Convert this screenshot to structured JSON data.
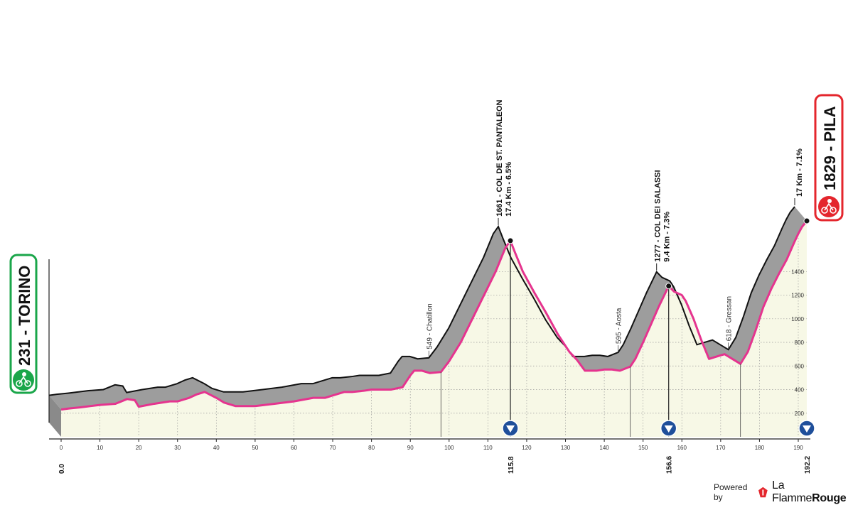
{
  "stage": {
    "start": {
      "elevation": "231",
      "name": "TORINO",
      "text": "231 - TORINO",
      "color": "#1aa64a"
    },
    "finish": {
      "elevation": "1829",
      "name": "PILA",
      "text": "1829 - PILA",
      "color": "#e4262d",
      "climb": "17 Km - 7.1%"
    },
    "climbs": [
      {
        "name": "1661 - COL DE ST. PANTALEON",
        "stats": "17.4 Km - 6.5%",
        "km": 115.8
      },
      {
        "name": "1277 - COL DEI SALASSI",
        "stats": "9.4 Km - 7.3%",
        "km": 156.6
      },
      {
        "name": "",
        "stats": "17 Km - 7.1%",
        "km": 192.2
      }
    ],
    "places": [
      {
        "label": "549 - Chatillon",
        "km": 97.9,
        "km_label": "97.9"
      },
      {
        "label": "595 - Aosta",
        "km": 146.7,
        "km_label": "146.7"
      },
      {
        "label": "618 - Gressan",
        "km": 175.1,
        "km_label": "175.1"
      }
    ],
    "km_markers": [
      "0.0",
      "115.8",
      "156.6",
      "192.2"
    ]
  },
  "colors": {
    "route": "#e5348f",
    "fill": "#f7f8e6",
    "shadow": "#9d9d9d",
    "outline": "#111111",
    "gpm": "#1f4f9a"
  },
  "credit": {
    "powered": "Powered by",
    "brand_light": "La Flamme",
    "brand_bold": "Rouge"
  },
  "chart_data": {
    "type": "area",
    "title": "",
    "xlabel": "",
    "ylabel": "",
    "xlim": [
      0,
      192.2
    ],
    "ylim": [
      0,
      1829
    ],
    "x_ticks": [
      0,
      10,
      20,
      30,
      40,
      50,
      60,
      70,
      80,
      90,
      100,
      110,
      120,
      130,
      140,
      150,
      160,
      170,
      180,
      190
    ],
    "y_ticks": [
      200,
      400,
      600,
      800,
      1000,
      1200,
      1400
    ],
    "grid": true,
    "series": [
      {
        "x": [
          0,
          2,
          5,
          10,
          14,
          17,
          19,
          20,
          24,
          28,
          30,
          33,
          35,
          37,
          40,
          42,
          45,
          50,
          55,
          60,
          65,
          68,
          70,
          73,
          75,
          78,
          80,
          85,
          88,
          90,
          91,
          93,
          95,
          97.9,
          100,
          103,
          106,
          109,
          112,
          113.5,
          114.5,
          115.8,
          117,
          119,
          122,
          125,
          128,
          131,
          133,
          135,
          138,
          140,
          142,
          144,
          146.7,
          148,
          150,
          152,
          154,
          156.6,
          158,
          160,
          161,
          163,
          165,
          167,
          169,
          171,
          173,
          175.1,
          177,
          179,
          181,
          183,
          185,
          187,
          189,
          190,
          191,
          192.2
        ],
        "y": [
          231,
          240,
          250,
          270,
          280,
          320,
          310,
          255,
          280,
          300,
          300,
          330,
          360,
          380,
          330,
          290,
          260,
          260,
          280,
          300,
          330,
          330,
          350,
          380,
          380,
          390,
          400,
          400,
          420,
          520,
          560,
          560,
          540,
          549,
          640,
          800,
          1000,
          1200,
          1400,
          1520,
          1600,
          1661,
          1560,
          1400,
          1220,
          1050,
          870,
          720,
          650,
          560,
          560,
          570,
          570,
          560,
          595,
          660,
          800,
          950,
          1100,
          1277,
          1230,
          1200,
          1150,
          1000,
          820,
          660,
          680,
          700,
          660,
          618,
          720,
          900,
          1100,
          1250,
          1380,
          1500,
          1650,
          1720,
          1780,
          1829
        ]
      }
    ]
  }
}
